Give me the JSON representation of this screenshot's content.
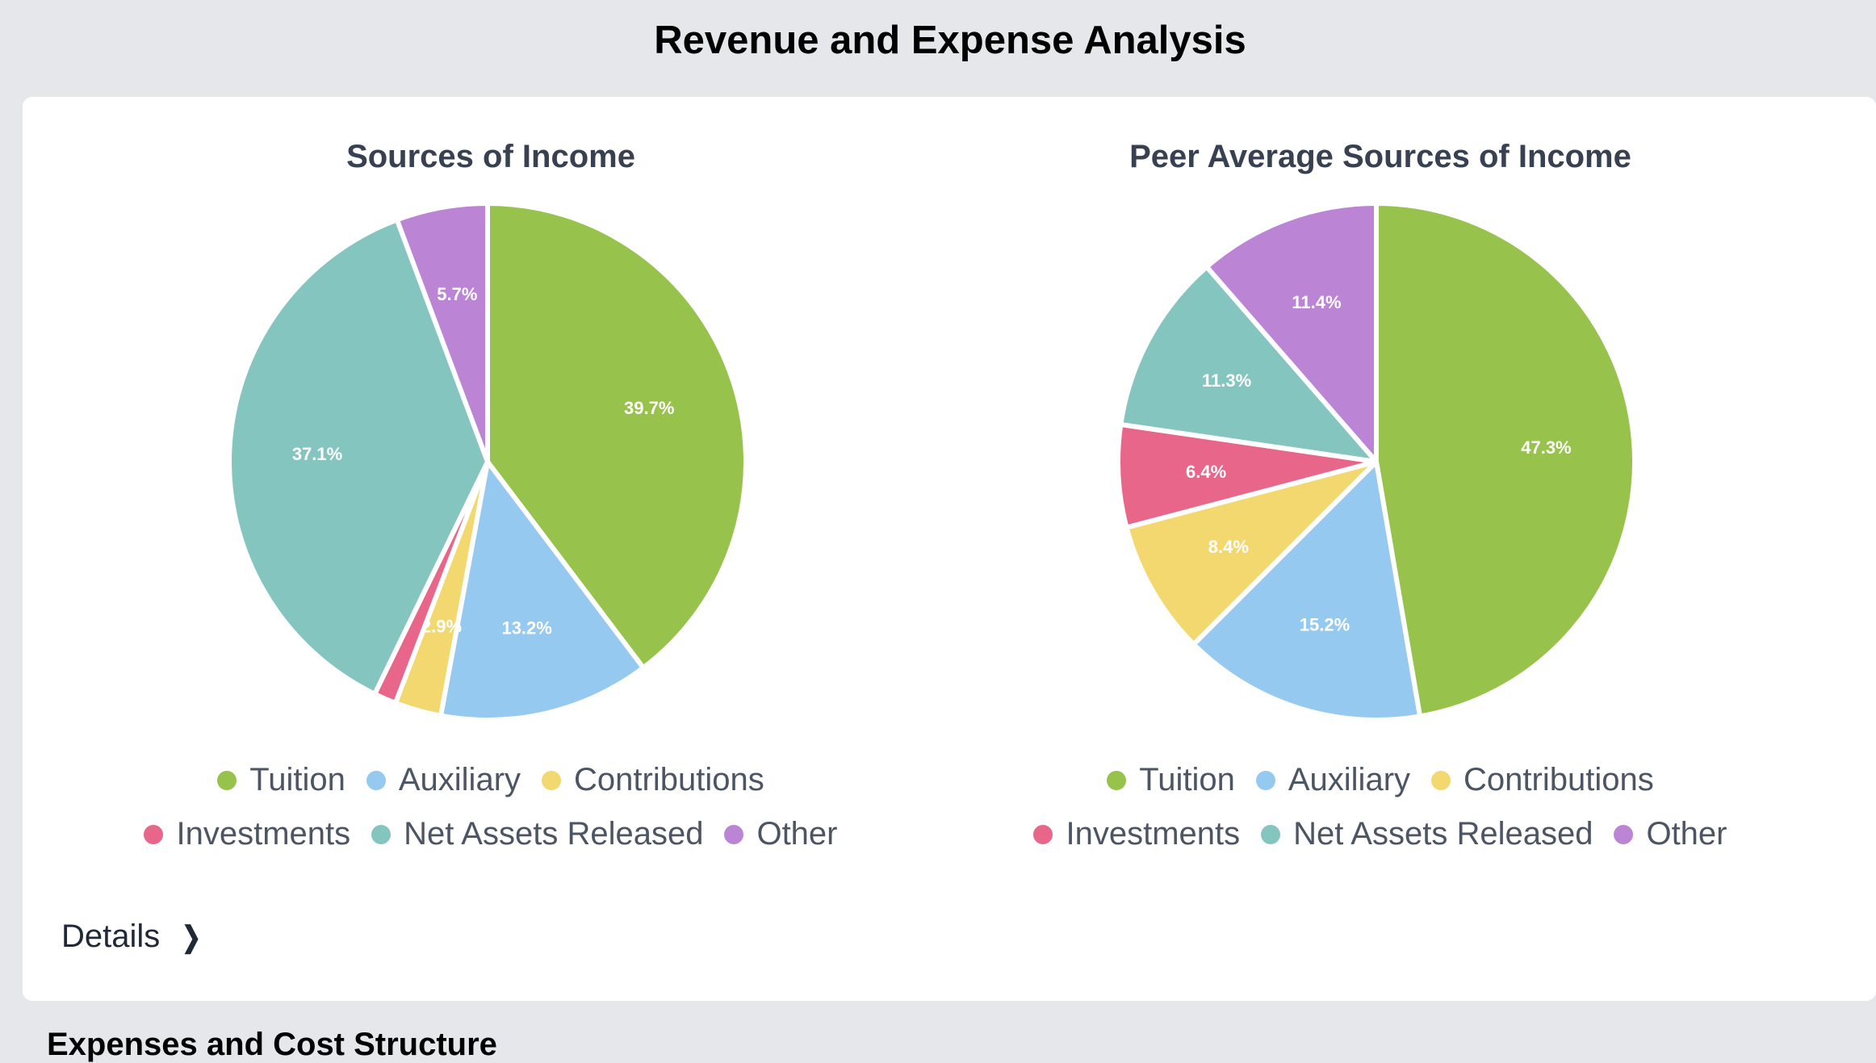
{
  "page": {
    "title": "Revenue and Expense Analysis",
    "next_section_title": "Expenses and Cost Structure"
  },
  "details": {
    "label": "Details"
  },
  "legend": {
    "items": [
      {
        "label": "Tuition",
        "color": "#97c24b"
      },
      {
        "label": "Auxiliary",
        "color": "#95c9f0"
      },
      {
        "label": "Contributions",
        "color": "#f3d870"
      },
      {
        "label": "Investments",
        "color": "#e8668a"
      },
      {
        "label": "Net Assets Released",
        "color": "#84c5c0"
      },
      {
        "label": "Other",
        "color": "#bb84d5"
      }
    ]
  },
  "chart_data": [
    {
      "type": "pie",
      "title": "Sources of Income",
      "categories": [
        "Tuition",
        "Auxiliary",
        "Contributions",
        "Investments",
        "Net Assets Released",
        "Other"
      ],
      "values": [
        39.7,
        13.2,
        2.9,
        1.4,
        37.1,
        5.7
      ],
      "value_labels": [
        "39.7%",
        "13.2%",
        "2.9%",
        "",
        "37.1%",
        "5.7%"
      ],
      "colors": [
        "#97c24b",
        "#95c9f0",
        "#f3d870",
        "#e8668a",
        "#84c5c0",
        "#bb84d5"
      ],
      "legend_position": "bottom"
    },
    {
      "type": "pie",
      "title": "Peer Average Sources of Income",
      "categories": [
        "Tuition",
        "Auxiliary",
        "Contributions",
        "Investments",
        "Net Assets Released",
        "Other"
      ],
      "values": [
        47.3,
        15.2,
        8.4,
        6.4,
        11.3,
        11.4
      ],
      "value_labels": [
        "47.3%",
        "15.2%",
        "8.4%",
        "6.4%",
        "11.3%",
        "11.4%"
      ],
      "colors": [
        "#97c24b",
        "#95c9f0",
        "#f3d870",
        "#e8668a",
        "#84c5c0",
        "#bb84d5"
      ],
      "legend_position": "bottom"
    }
  ]
}
